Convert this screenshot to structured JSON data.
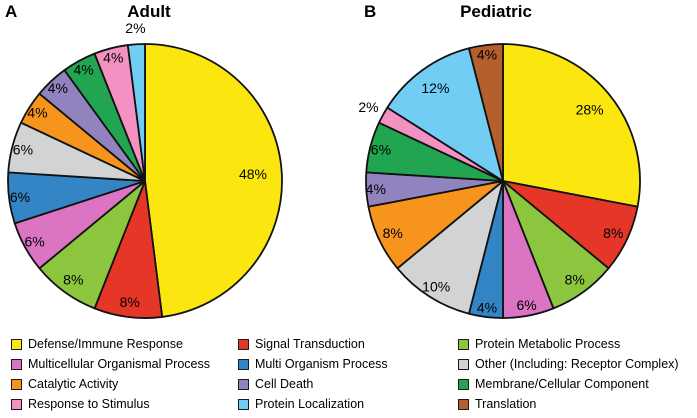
{
  "figure": {
    "panels": [
      {
        "letter": "A",
        "title": "Adult"
      },
      {
        "letter": "B",
        "title": "Pediatric"
      }
    ]
  },
  "chart_data": [
    {
      "type": "pie",
      "title": "Adult",
      "direction": "clockwise",
      "start_angle_deg": 0,
      "labels": [
        "Defense/Immune Response",
        "Signal Transduction",
        "Protein Metabolic Process",
        "Multicellular Organismal Process",
        "Multi Organism Process",
        "Other (Including: Receptor Complex)",
        "Catalytic Activity",
        "Cell Death",
        "Membrane/Cellular Component",
        "Response to Stimulus",
        "Protein Localization"
      ],
      "values": [
        48,
        8,
        8,
        6,
        6,
        6,
        4,
        4,
        4,
        4,
        2
      ],
      "percent_labels": [
        "48%",
        "8%",
        "8%",
        "6%",
        "6%",
        "6%",
        "4%",
        "4%",
        "4%",
        "4%",
        "2%"
      ],
      "colors": [
        "#FBE70F",
        "#E53628",
        "#8CC63F",
        "#DB74C2",
        "#3385C6",
        "#D1D3D4",
        "#F7941E",
        "#9083BE",
        "#21A550",
        "#F491C3",
        "#72CDF4"
      ]
    },
    {
      "type": "pie",
      "title": "Pediatric",
      "direction": "clockwise",
      "start_angle_deg": 0,
      "labels": [
        "Defense/Immune Response",
        "Signal Transduction",
        "Protein Metabolic Process",
        "Multicellular Organismal Process",
        "Multi Organism Process",
        "Other (Including: Receptor Complex)",
        "Catalytic Activity",
        "Cell Death",
        "Membrane/Cellular Component",
        "Response to Stimulus",
        "Protein Localization",
        "Translation"
      ],
      "values": [
        28,
        8,
        8,
        6,
        4,
        10,
        8,
        4,
        6,
        2,
        12,
        4
      ],
      "percent_labels": [
        "28%",
        "8%",
        "8%",
        "6%",
        "4%",
        "10%",
        "8%",
        "4%",
        "6%",
        "2%",
        "12%",
        "4%"
      ],
      "colors": [
        "#FBE70F",
        "#E53628",
        "#8CC63F",
        "#DB74C2",
        "#3385C6",
        "#D1D3D4",
        "#F7941E",
        "#9083BE",
        "#21A550",
        "#F491C3",
        "#72CDF4",
        "#B45F2C"
      ]
    }
  ],
  "legend": {
    "columns": [
      {
        "items": [
          {
            "label": "Defense/Immune Response",
            "color": "#FBE70F"
          },
          {
            "label": "Multicellular Organismal Process",
            "color": "#DB74C2"
          },
          {
            "label": "Catalytic Activity",
            "color": "#F7941E"
          },
          {
            "label": "Response to Stimulus",
            "color": "#F491C3"
          }
        ]
      },
      {
        "items": [
          {
            "label": "Signal Transduction",
            "color": "#E53628"
          },
          {
            "label": "Multi Organism Process",
            "color": "#3385C6"
          },
          {
            "label": "Cell Death",
            "color": "#9083BE"
          },
          {
            "label": "Protein Localization",
            "color": "#72CDF4"
          }
        ]
      },
      {
        "items": [
          {
            "label": "Protein Metabolic Process",
            "color": "#8CC63F"
          },
          {
            "label": "Other (Including: Receptor Complex)",
            "color": "#D1D3D4"
          },
          {
            "label": "Membrane/Cellular Component",
            "color": "#21A550"
          },
          {
            "label": "Translation",
            "color": "#B45F2C"
          }
        ]
      }
    ]
  }
}
